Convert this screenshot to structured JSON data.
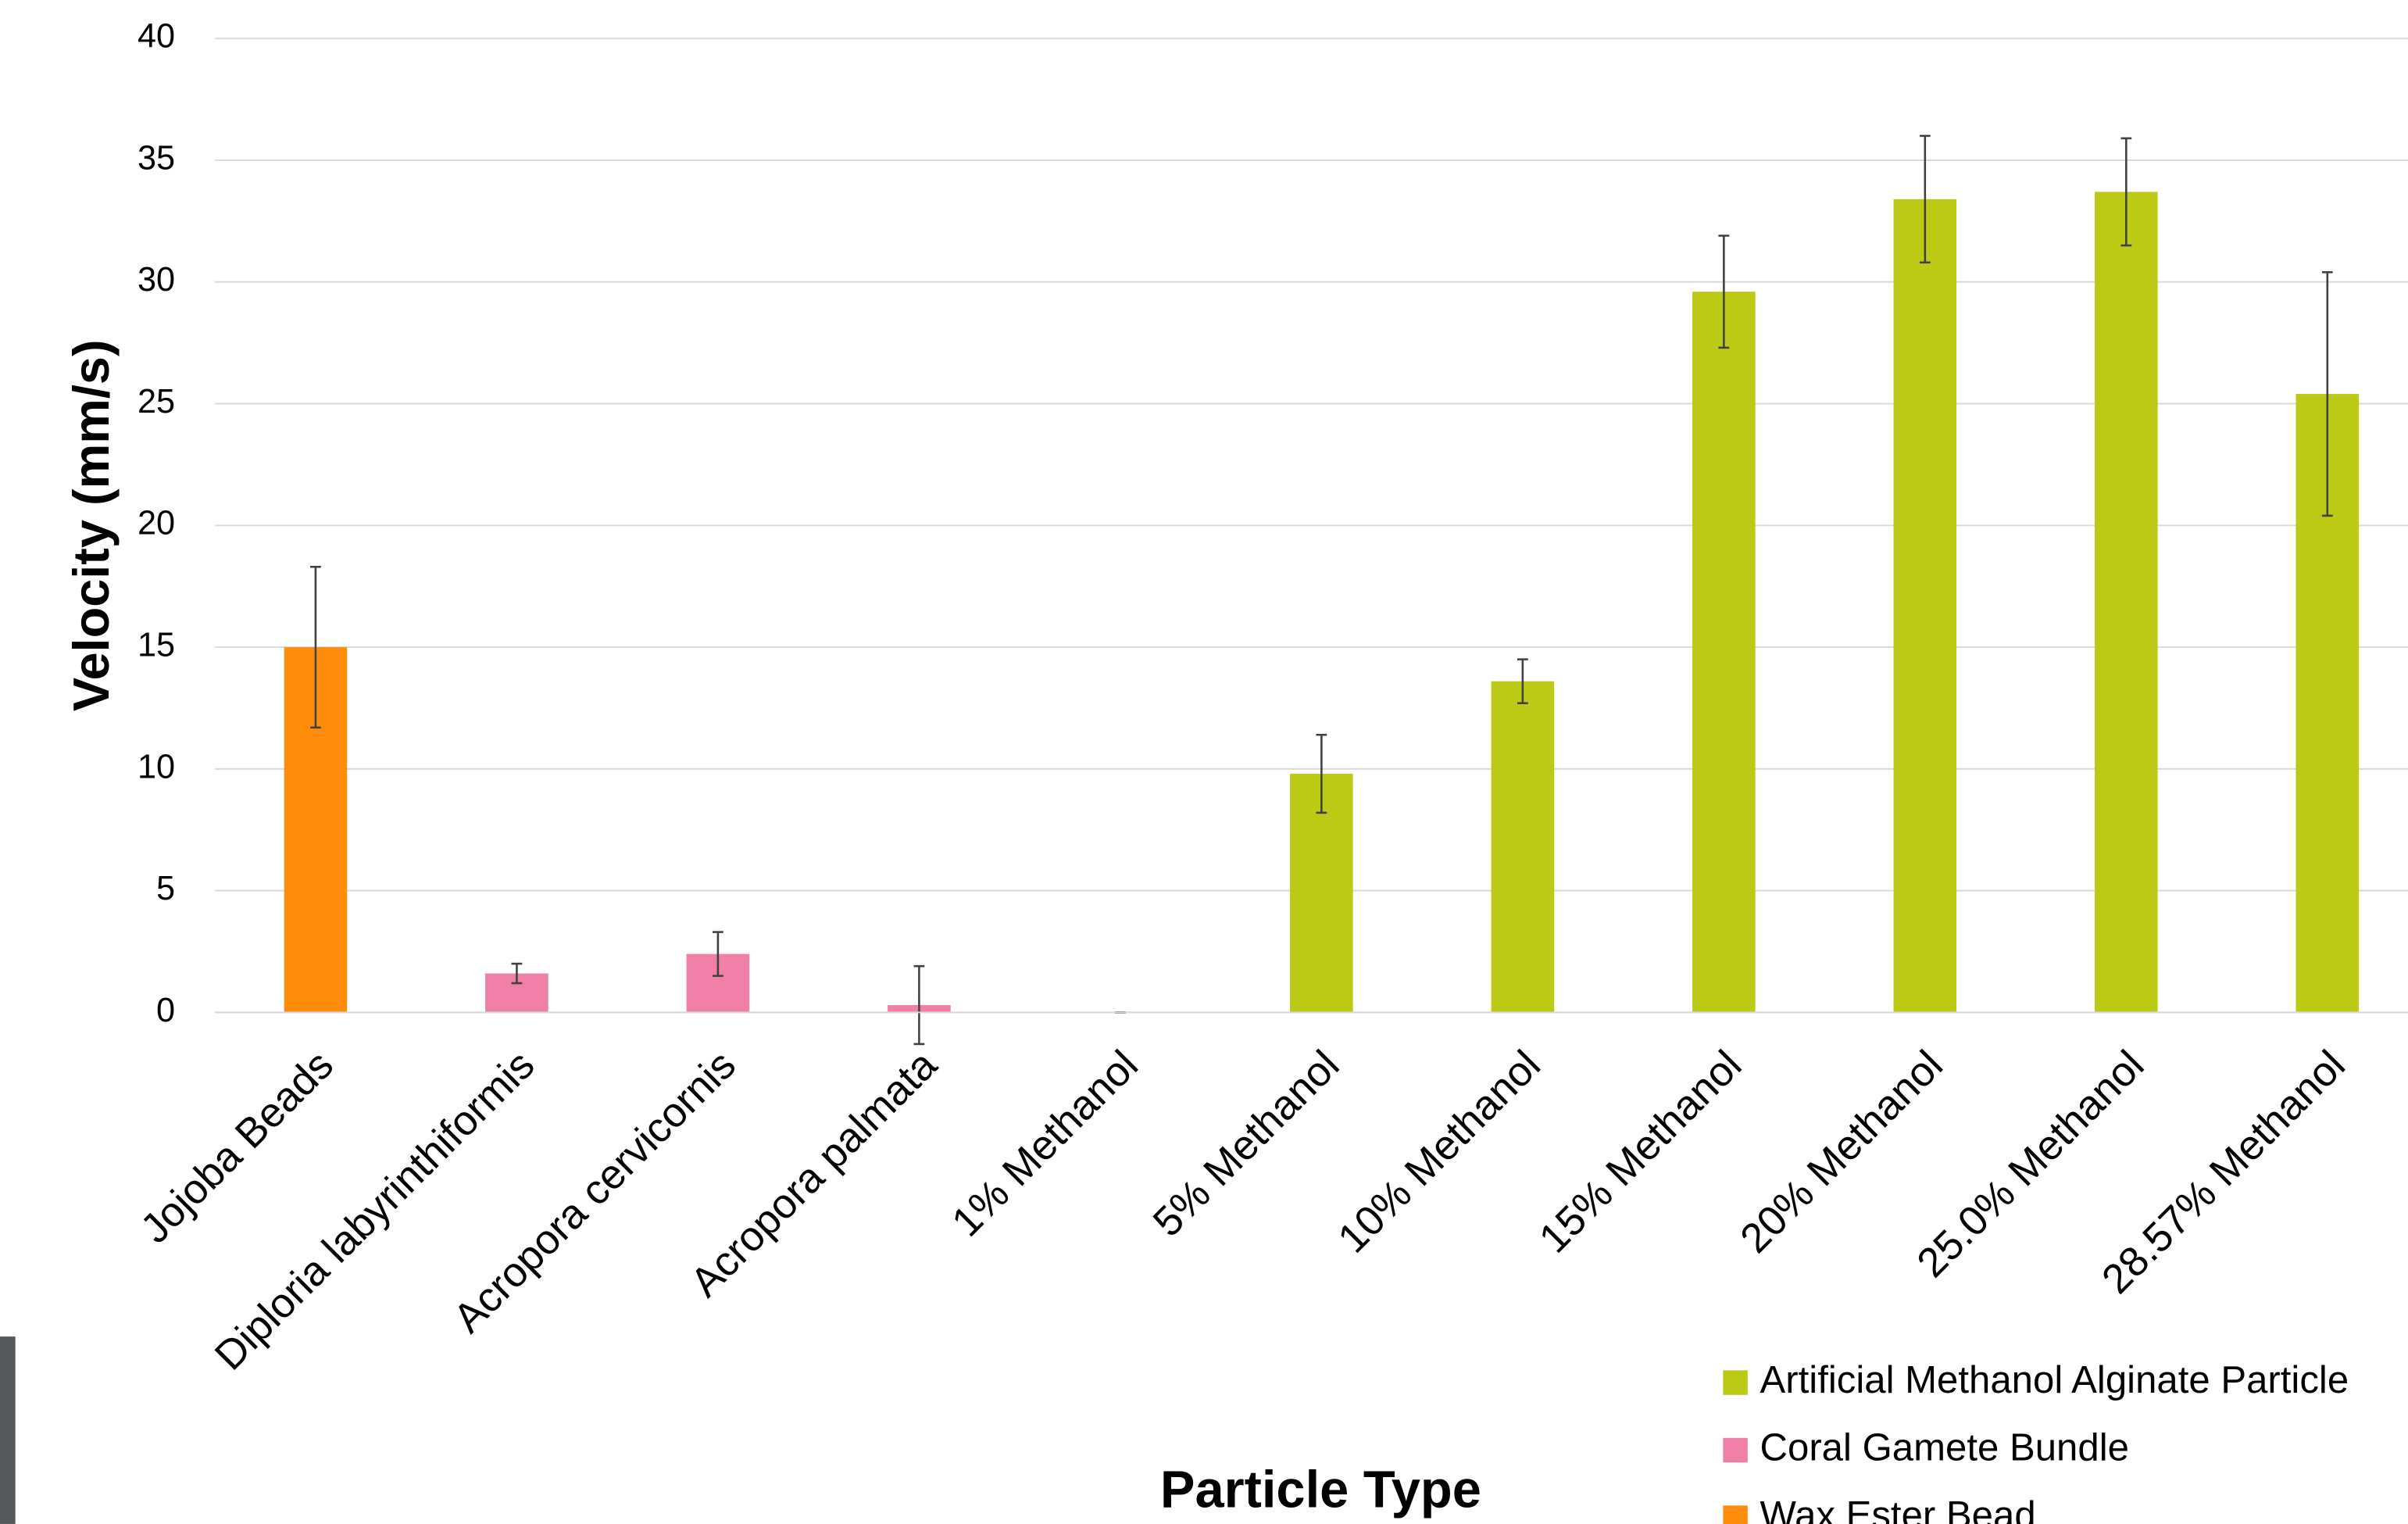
{
  "chart_data": {
    "type": "bar",
    "x_label": "Particle Type",
    "y_label": "Velocity (mm/s)",
    "categories": [
      "Jojoba Beads",
      "Diploria labyrinthiformis",
      "Acropora cervicornis",
      "Acropora palmata",
      "1% Methanol",
      "5% Methanol",
      "10% Methanol",
      "15% Methanol",
      "20% Methanol",
      "25.0% Methanol",
      "28.57% Methanol"
    ],
    "series": [
      {
        "name": "Artificial Methanol Alginate Particle",
        "color": "#bcc915",
        "values": [
          null,
          null,
          null,
          null,
          0,
          9.8,
          13.6,
          29.6,
          33.4,
          33.7,
          25.4
        ],
        "errors": [
          null,
          null,
          null,
          null,
          0,
          1.6,
          0.9,
          2.3,
          2.6,
          2.2,
          5.0
        ]
      },
      {
        "name": "Coral Gamete Bundle",
        "color": "#ef7fa6",
        "values": [
          null,
          1.6,
          2.4,
          0.3,
          null,
          null,
          null,
          null,
          null,
          null,
          null
        ],
        "errors": [
          null,
          0.4,
          0.9,
          1.6,
          null,
          null,
          null,
          null,
          null,
          null,
          null
        ]
      },
      {
        "name": "Wax Ester Bead",
        "color": "#ff8c0a",
        "values": [
          15.0,
          null,
          null,
          null,
          null,
          null,
          null,
          null,
          null,
          null,
          null
        ],
        "errors": [
          3.3,
          null,
          null,
          null,
          null,
          null,
          null,
          null,
          null,
          null,
          null
        ]
      }
    ],
    "ylim": [
      0,
      40
    ],
    "yticks": [
      0,
      5,
      10,
      15,
      20,
      25,
      30,
      35,
      40
    ],
    "grid": true
  }
}
